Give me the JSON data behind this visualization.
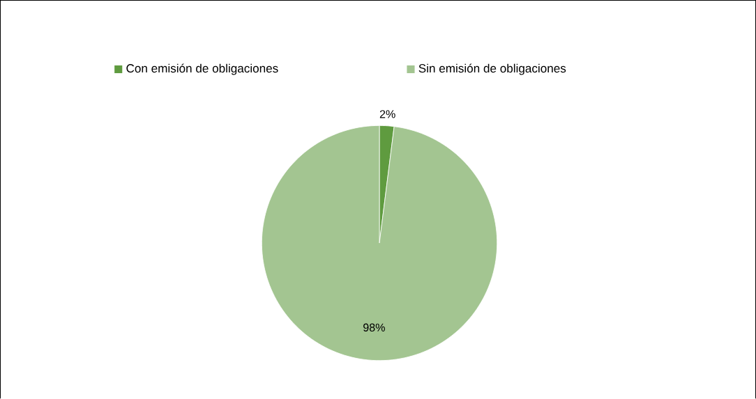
{
  "chart_data": {
    "type": "pie",
    "categories": [
      "Con emisión de obligaciones",
      "Sin emisión de obligaciones"
    ],
    "values": [
      2,
      98
    ],
    "colors": [
      "#5f9b3f",
      "#a3c591"
    ],
    "value_labels": [
      "2%",
      "98%"
    ],
    "legend": "top"
  }
}
